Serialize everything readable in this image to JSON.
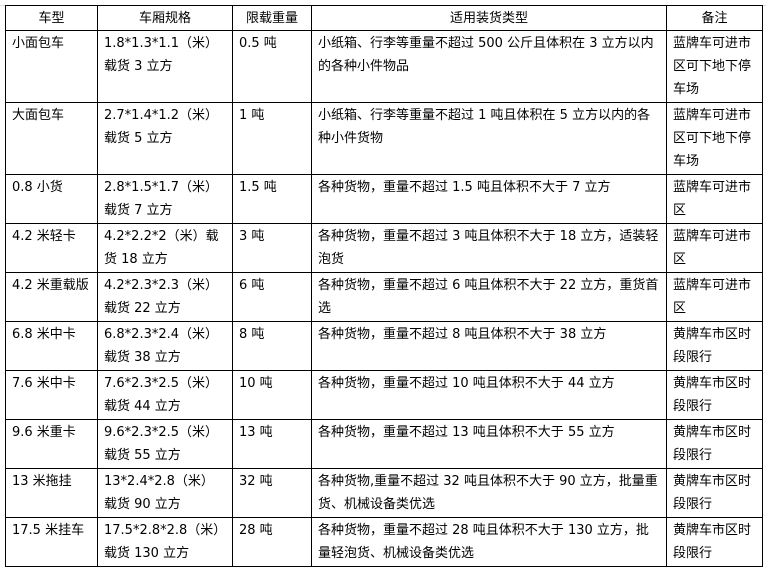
{
  "headers": [
    "车型",
    "车厢规格",
    "限载重量",
    "适用装货类型",
    "备注"
  ],
  "rows": [
    [
      "小面包车",
      "1.8*1.3*1.1（米）载货 3 立方",
      "0.5 吨",
      "小纸箱、行李等重量不超过 500 公斤且体积在 3 立方以内的各种小件物品",
      "蓝牌车可进市区可下地下停车场"
    ],
    [
      "大面包车",
      "2.7*1.4*1.2（米）载货 5 立方",
      "1 吨",
      "小纸箱、行李等重量不超过 1 吨且体积在 5 立方以内的各种小件货物",
      "蓝牌车可进市区可下地下停车场"
    ],
    [
      "0.8 小货",
      "2.8*1.5*1.7（米）载货 7 立方",
      "1.5 吨",
      "各种货物，重量不超过 1.5 吨且体积不大于 7 立方",
      "蓝牌车可进市区"
    ],
    [
      "4.2 米轻卡",
      "4.2*2.2*2（米）载货 18 立方",
      "3 吨",
      "各种货物，重量不超过 3 吨且体积不大于 18 立方，适装轻泡货",
      "蓝牌车可进市区"
    ],
    [
      "4.2 米重载版",
      "4.2*2.3*2.3（米）载货 22 立方",
      "6 吨",
      "各种货物，重量不超过 6 吨且体积不大于 22 立方，重货首选",
      "蓝牌车可进市区"
    ],
    [
      "6.8 米中卡",
      "6.8*2.3*2.4（米）载货 38 立方",
      "8 吨",
      "各种货物，重量不超过 8 吨且体积不大于 38 立方",
      "黄牌车市区时段限行"
    ],
    [
      "7.6 米中卡",
      "7.6*2.3*2.5（米）载货 44 立方",
      "10 吨",
      "各种货物，重量不超过 10 吨且体积不大于 44 立方",
      "黄牌车市区时段限行"
    ],
    [
      "9.6 米重卡",
      "9.6*2.3*2.5（米）载货 55 立方",
      "13 吨",
      "各种货物，重量不超过 13 吨且体积不大于 55 立方",
      "黄牌车市区时段限行"
    ],
    [
      "13 米拖挂",
      "13*2.4*2.8（米）载货 90 立方",
      "32 吨",
      "各种货物,重量不超过 32 吨且体积不大于 90 立方，批量重货、机械设备类优选",
      "黄牌车市区时段限行"
    ],
    [
      "17.5 米挂车",
      "17.5*2.8*2.8（米）载货 130 立方",
      "28 吨",
      "各种货物，重量不超过 28 吨且体积不大于 130 立方，批量轻泡货、机械设备类优选",
      "黄牌车市区时段限行"
    ]
  ]
}
